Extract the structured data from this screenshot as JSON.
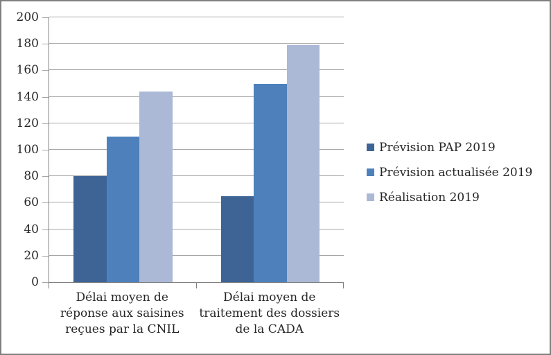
{
  "figure": {
    "background": "#ffffff",
    "border_color": "#7f7f7f",
    "axis_line_color": "#808080",
    "gridline_color": "#a6a6a6",
    "text_color": "#262626"
  },
  "chart_data": {
    "type": "bar",
    "title": "",
    "xlabel": "",
    "ylabel": "",
    "ylim": [
      0,
      200
    ],
    "ytick_step": 20,
    "yticks": [
      0,
      20,
      40,
      60,
      80,
      100,
      120,
      140,
      160,
      180,
      200
    ],
    "grid": true,
    "legend_position": "right",
    "categories": [
      {
        "name": "Délai moyen de réponse aux saisines reçues par la CNIL",
        "lines": [
          "Délai moyen de",
          "réponse aux saisines",
          "reçues par la CNIL"
        ]
      },
      {
        "name": "Délai moyen de traitement des dossiers de la CADA",
        "lines": [
          "Délai moyen de",
          "traitement des dossiers",
          "de la CADA"
        ]
      }
    ],
    "series": [
      {
        "name": "Prévision PAP 2019",
        "color": "#3e6496",
        "values": [
          80,
          65
        ]
      },
      {
        "name": "Prévision actualisée 2019",
        "color": "#4e81bc",
        "values": [
          110,
          150
        ]
      },
      {
        "name": "Réalisation 2019",
        "color": "#abb8d6",
        "values": [
          144,
          179
        ]
      }
    ]
  }
}
